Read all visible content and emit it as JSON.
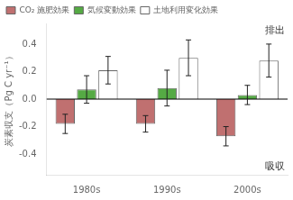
{
  "chart_data": {
    "type": "bar",
    "categories": [
      "1980s",
      "1990s",
      "2000s"
    ],
    "series": [
      {
        "name": "CO₂ 施肥効果",
        "color": "#c07070",
        "values": [
          -0.18,
          -0.18,
          -0.27
        ],
        "errors": [
          0.07,
          0.06,
          0.07
        ]
      },
      {
        "name": "気候変動効果",
        "color": "#55aa44",
        "values": [
          0.07,
          0.08,
          0.03
        ],
        "errors": [
          0.1,
          0.13,
          0.07
        ]
      },
      {
        "name": "土地利用変化効果",
        "color": "#ffffff",
        "values": [
          0.21,
          0.3,
          0.28
        ],
        "errors": [
          0.1,
          0.13,
          0.12
        ]
      }
    ],
    "ylim": [
      -0.55,
      0.55
    ],
    "yticks": [
      {
        "value": -0.4,
        "label": "-0.4"
      },
      {
        "value": -0.2,
        "label": "-0.2"
      },
      {
        "value": 0,
        "label": "0.0"
      },
      {
        "value": 0.2,
        "label": "0.2"
      },
      {
        "value": 0.4,
        "label": "0.4"
      }
    ],
    "ylabel": "炭素収支（Pg C yr⁻¹）",
    "annotations": [
      "排出",
      "吸収"
    ],
    "legend": "upper left",
    "grid": false
  }
}
